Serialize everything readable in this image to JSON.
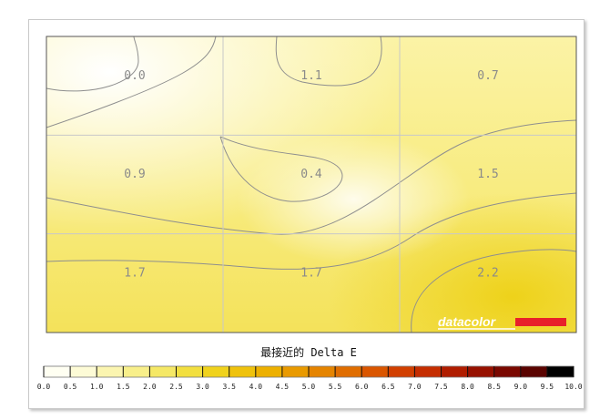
{
  "chart_data": {
    "type": "heatmap",
    "rows": 3,
    "cols": 3,
    "values": [
      [
        0.0,
        1.1,
        0.7
      ],
      [
        0.9,
        0.4,
        1.5
      ],
      [
        1.7,
        1.7,
        2.2
      ]
    ],
    "value_labels": [
      [
        "0.0",
        "1.1",
        "0.7"
      ],
      [
        "0.9",
        "0.4",
        "1.5"
      ],
      [
        "1.7",
        "1.7",
        "2.2"
      ]
    ],
    "legend_title": "最接近的 Delta E",
    "scale_min": 0.0,
    "scale_max": 10.0,
    "scale_step": 0.5,
    "scale_ticks": [
      "0.0",
      "0.5",
      "1.0",
      "1.5",
      "2.0",
      "2.5",
      "3.0",
      "3.5",
      "4.0",
      "4.5",
      "5.0",
      "5.5",
      "6.0",
      "6.5",
      "7.0",
      "7.5",
      "8.0",
      "8.5",
      "9.0",
      "9.5",
      "10.0"
    ],
    "scale_colors": [
      "#fffff2",
      "#fdfbd6",
      "#fbf5b0",
      "#f8ef8a",
      "#f5e866",
      "#f2df3f",
      "#f0d21c",
      "#efc20c",
      "#edb000",
      "#e99a00",
      "#e58400",
      "#e06d00",
      "#da5600",
      "#d13f00",
      "#c52d00",
      "#b01d00",
      "#971100",
      "#7a0800",
      "#5a0300",
      "#000000"
    ],
    "logo": "datacolor",
    "logo_bar_color": "#e8202a"
  }
}
